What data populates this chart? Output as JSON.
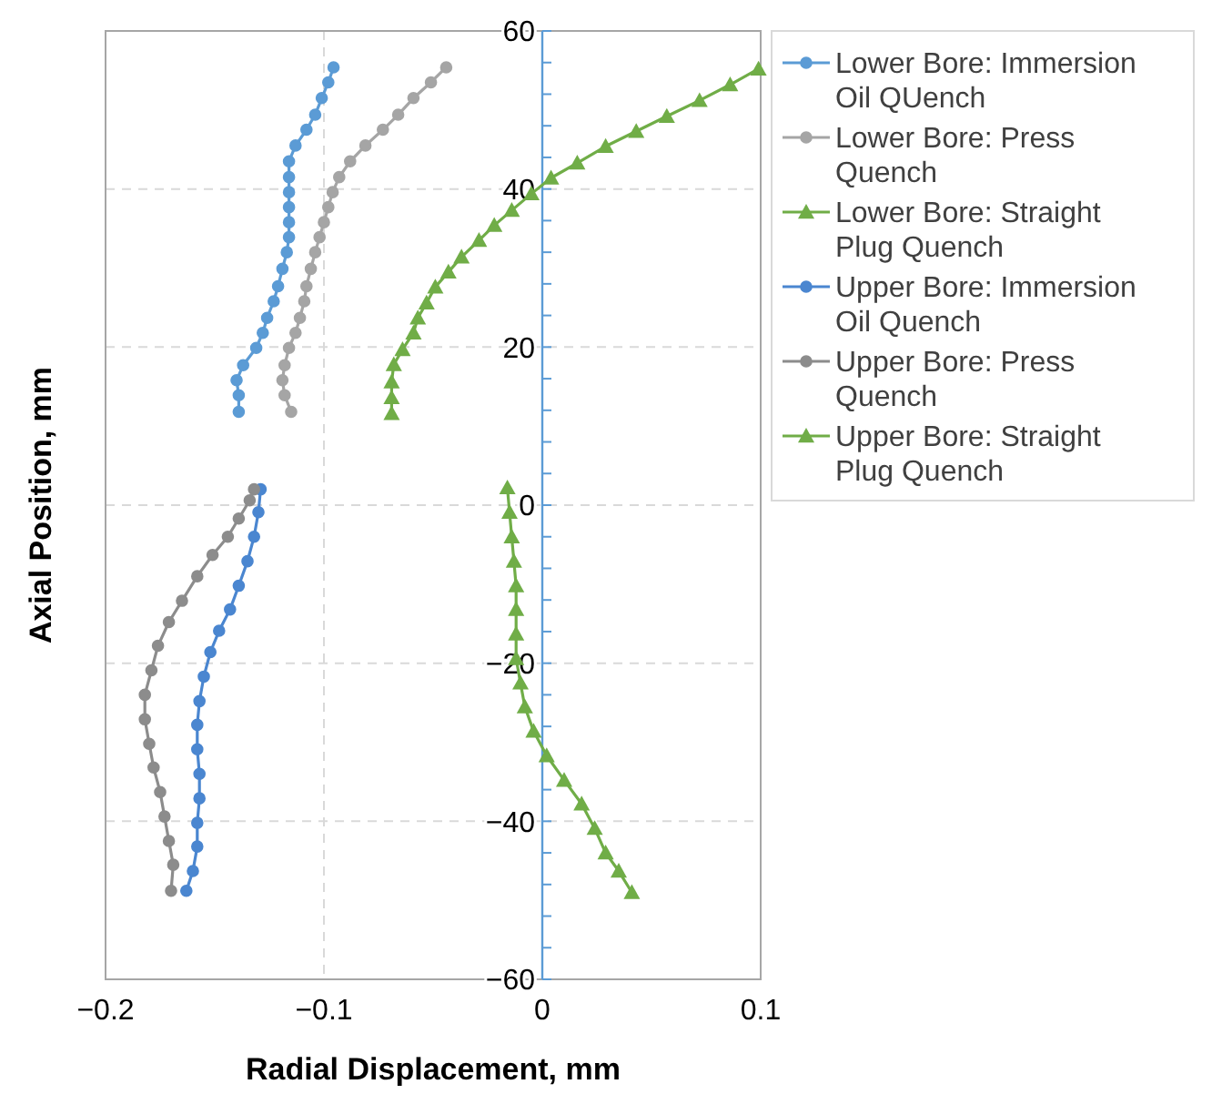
{
  "chart_data": {
    "type": "line",
    "xlabel": "Radial Displacement, mm",
    "ylabel": "Axial Position, mm",
    "xlim": [
      -0.2,
      0.1
    ],
    "xticks": [
      -0.2,
      -0.1,
      0,
      0.1
    ],
    "ylim": [
      -60,
      60
    ],
    "yticks": [
      -60,
      -40,
      -20,
      0,
      20,
      40,
      60
    ],
    "grid": true,
    "legend": "right",
    "line_style": "solid",
    "series": [
      {
        "name": "Lower Bore: Immersion Oil QUench",
        "color": "#5b9bd5",
        "marker": "circle",
        "x": [
          -0.0956,
          -0.098,
          -0.101,
          -0.104,
          -0.108,
          -0.113,
          -0.116,
          -0.116,
          -0.116,
          -0.116,
          -0.116,
          -0.116,
          -0.117,
          -0.119,
          -0.121,
          -0.123,
          -0.126,
          -0.128,
          -0.131,
          -0.137,
          -0.14,
          -0.139,
          -0.139
        ],
        "values": [
          55.4,
          53.5,
          51.5,
          49.4,
          47.5,
          45.5,
          43.5,
          41.5,
          39.6,
          37.7,
          35.8,
          33.9,
          32,
          29.9,
          27.7,
          25.8,
          23.7,
          21.8,
          19.9,
          17.7,
          15.8,
          13.9,
          11.8
        ]
      },
      {
        "name": "Lower Bore: Press Quench",
        "color": "#a5a5a5",
        "marker": "circle",
        "x": [
          -0.044,
          -0.051,
          -0.059,
          -0.066,
          -0.073,
          -0.081,
          -0.088,
          -0.093,
          -0.096,
          -0.098,
          -0.1,
          -0.102,
          -0.104,
          -0.106,
          -0.108,
          -0.109,
          -0.111,
          -0.113,
          -0.116,
          -0.118,
          -0.119,
          -0.118,
          -0.115
        ],
        "values": [
          55.4,
          53.5,
          51.5,
          49.4,
          47.5,
          45.5,
          43.5,
          41.5,
          39.6,
          37.7,
          35.8,
          33.9,
          32,
          29.9,
          27.7,
          25.8,
          23.7,
          21.8,
          19.9,
          17.7,
          15.8,
          13.9,
          11.8
        ]
      },
      {
        "name": "Lower Bore: Straight Plug Quench",
        "color": "#70ad47",
        "marker": "triangle",
        "x": [
          0.099,
          0.086,
          0.072,
          0.057,
          0.043,
          0.029,
          0.016,
          0.004,
          -0.005,
          -0.014,
          -0.022,
          -0.029,
          -0.037,
          -0.043,
          -0.049,
          -0.053,
          -0.057,
          -0.059,
          -0.064,
          -0.068,
          -0.069,
          -0.069,
          -0.069
        ],
        "values": [
          55.2,
          53.2,
          51.2,
          49.2,
          47.3,
          45.4,
          43.3,
          41.4,
          39.4,
          37.3,
          35.4,
          33.5,
          31.4,
          29.5,
          27.6,
          25.6,
          23.7,
          21.8,
          19.7,
          17.8,
          15.6,
          13.6,
          11.6
        ]
      },
      {
        "name": "Upper Bore: Immersion Oil Quench",
        "color": "#4a86d0",
        "marker": "circle",
        "x": [
          -0.129,
          -0.13,
          -0.132,
          -0.135,
          -0.139,
          -0.143,
          -0.148,
          -0.152,
          -0.155,
          -0.157,
          -0.158,
          -0.158,
          -0.157,
          -0.157,
          -0.158,
          -0.158,
          -0.16,
          -0.163
        ],
        "values": [
          2,
          -0.9,
          -4,
          -7.1,
          -10.2,
          -13.2,
          -15.9,
          -18.6,
          -21.7,
          -24.8,
          -27.8,
          -30.9,
          -34,
          -37.1,
          -40.2,
          -43.2,
          -46.3,
          -48.8
        ]
      },
      {
        "name": "Upper Bore: Press Quench",
        "color": "#8c8c8c",
        "marker": "circle",
        "x": [
          -0.132,
          -0.134,
          -0.139,
          -0.144,
          -0.151,
          -0.158,
          -0.165,
          -0.171,
          -0.176,
          -0.179,
          -0.182,
          -0.182,
          -0.18,
          -0.178,
          -0.175,
          -0.173,
          -0.171,
          -0.169,
          -0.17
        ],
        "values": [
          2,
          0.6,
          -1.7,
          -4,
          -6.3,
          -9,
          -12.1,
          -14.8,
          -17.8,
          -20.9,
          -24,
          -27.1,
          -30.2,
          -33.2,
          -36.3,
          -39.4,
          -42.5,
          -45.5,
          -48.8
        ]
      },
      {
        "name": "Upper Bore: Straight Plug Quench",
        "color": "#70ad47",
        "marker": "triangle",
        "x": [
          -0.016,
          -0.015,
          -0.014,
          -0.013,
          -0.012,
          -0.012,
          -0.012,
          -0.012,
          -0.01,
          -0.008,
          -0.004,
          0.002,
          0.01,
          0.018,
          0.024,
          0.029,
          0.035,
          0.041
        ],
        "values": [
          2.2,
          -0.9,
          -4,
          -7.1,
          -10.2,
          -13.2,
          -16.3,
          -19.4,
          -22.5,
          -25.5,
          -28.6,
          -31.7,
          -34.8,
          -37.8,
          -40.9,
          -44,
          -46.3,
          -49
        ]
      }
    ]
  }
}
